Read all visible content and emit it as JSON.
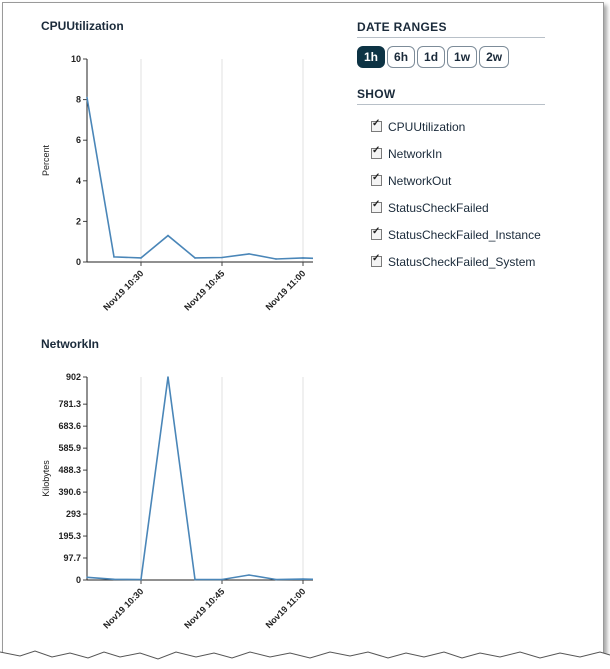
{
  "charts": [
    {
      "title": "CPUUtilization",
      "ylabel": "Percent",
      "y_ticks": [
        "10",
        "8",
        "6",
        "4",
        "2",
        "0"
      ],
      "x_ticks": [
        "Nov19 10:30",
        "Nov19 10:45",
        "Nov19 11:00"
      ]
    },
    {
      "title": "NetworkIn",
      "ylabel": "Kilobytes",
      "y_ticks": [
        "902",
        "781.3",
        "683.6",
        "585.9",
        "488.3",
        "390.6",
        "293",
        "195.3",
        "97.7",
        "0"
      ],
      "x_ticks": [
        "Nov19 10:30",
        "Nov19 10:45",
        "Nov19 11:00"
      ]
    }
  ],
  "date_ranges": {
    "title": "DATE RANGES",
    "options": [
      "1h",
      "6h",
      "1d",
      "1w",
      "2w"
    ],
    "selected": "1h"
  },
  "show": {
    "title": "SHOW",
    "items": [
      {
        "label": "CPUUtilization",
        "checked": true
      },
      {
        "label": "NetworkIn",
        "checked": true
      },
      {
        "label": "NetworkOut",
        "checked": true
      },
      {
        "label": "StatusCheckFailed",
        "checked": true
      },
      {
        "label": "StatusCheckFailed_Instance",
        "checked": true
      },
      {
        "label": "StatusCheckFailed_System",
        "checked": true
      }
    ]
  },
  "chart_data": [
    {
      "type": "line",
      "title": "CPUUtilization",
      "xlabel": "",
      "ylabel": "Percent",
      "x": [
        "10:20",
        "10:25",
        "10:30",
        "10:35",
        "10:40",
        "10:45",
        "10:50",
        "10:55",
        "11:00",
        "11:05"
      ],
      "values": [
        8.1,
        0.25,
        0.2,
        1.3,
        0.2,
        0.22,
        0.4,
        0.15,
        0.2,
        0.15
      ],
      "ylim": [
        0,
        10
      ],
      "x_tick_labels": [
        "Nov19 10:30",
        "Nov19 10:45",
        "Nov19 11:00"
      ],
      "grid": true,
      "line_color": "#4a86b8"
    },
    {
      "type": "line",
      "title": "NetworkIn",
      "xlabel": "",
      "ylabel": "Kilobytes",
      "x": [
        "10:20",
        "10:25",
        "10:30",
        "10:35",
        "10:40",
        "10:45",
        "10:50",
        "10:55",
        "11:00",
        "11:05"
      ],
      "values": [
        12,
        3,
        2,
        902,
        2,
        2,
        22,
        2,
        4,
        2
      ],
      "ylim": [
        0,
        902
      ],
      "x_tick_labels": [
        "Nov19 10:30",
        "Nov19 10:45",
        "Nov19 11:00"
      ],
      "grid": true,
      "line_color": "#4a86b8"
    }
  ]
}
